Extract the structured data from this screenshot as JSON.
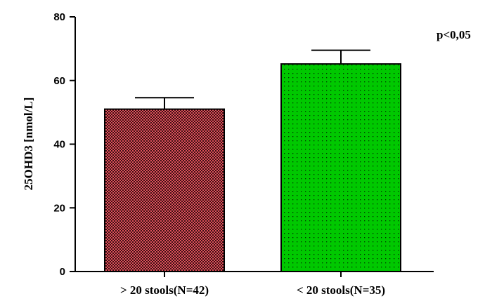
{
  "chart_data": {
    "type": "bar",
    "title": "",
    "xlabel": "",
    "ylabel": "25OHD3 [nmol/L]",
    "ylim": [
      0,
      80
    ],
    "yticks": [
      0,
      20,
      40,
      60,
      80
    ],
    "categories": [
      "> 20 stools(N=42)",
      "< 20 stools(N=35)"
    ],
    "values": [
      51,
      65.2
    ],
    "error_upper": [
      3.6,
      4.3
    ],
    "bar_colors": [
      "#e0505a",
      "#00c800"
    ],
    "bar_patterns": [
      "dense-checker",
      "sparse-dots"
    ],
    "annotation": "p<0,05",
    "grid": false,
    "legend": "none"
  }
}
